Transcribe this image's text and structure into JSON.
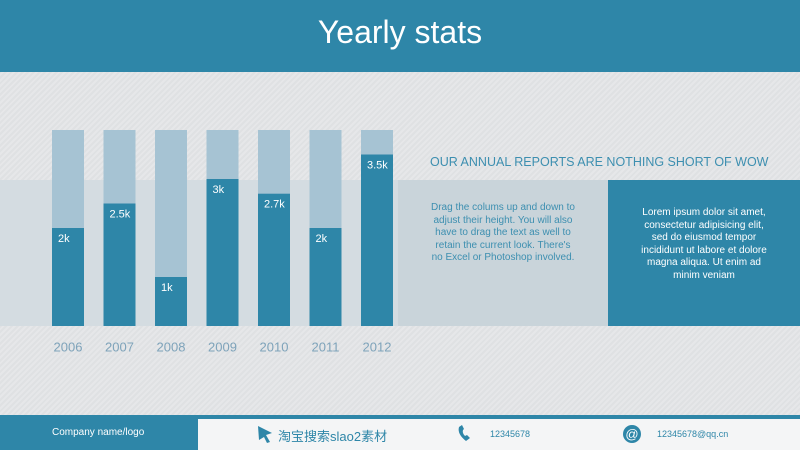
{
  "header": {
    "title": "Yearly stats"
  },
  "chart_data": {
    "type": "bar",
    "categories": [
      "2006",
      "2007",
      "2008",
      "2009",
      "2010",
      "2011",
      "2012"
    ],
    "values": [
      2000,
      2500,
      1000,
      3000,
      2700,
      2000,
      3500
    ],
    "value_labels": [
      "2k",
      "2.5k",
      "1k",
      "3k",
      "2.7k",
      "2k",
      "3.5k"
    ],
    "ylim": [
      0,
      4000
    ],
    "color": "#2e86a8",
    "track_color": "#a6c3d3"
  },
  "panel": {
    "heading": "OUR ANNUAL REPORTS ARE NOTHING SHORT OF WOW",
    "left_text": "Drag the colums up and down to adjust their height. You will also have to drag the text as well to retain the current look.  There's no Excel or Photoshop involved.",
    "right_text": "Lorem ipsum dolor sit amet, consectetur adipisicing elit, sed do eiusmod tempor incididunt ut labore et dolore magna aliqua. Ut enim ad minim veniam"
  },
  "footer": {
    "company": "Company name/logo",
    "search": "淘宝搜索slao2素材",
    "phone": "12345678",
    "email": "12345678@qq.cn"
  }
}
